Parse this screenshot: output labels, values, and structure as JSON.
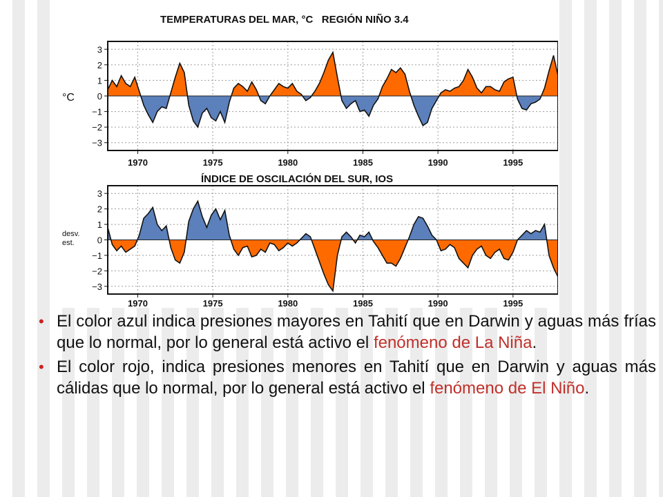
{
  "colors": {
    "positive_sst": "#ff6a00",
    "negative_sst": "#5b80bb",
    "positive_soi": "#5b80bb",
    "negative_soi": "#ff6a00",
    "highlight_text": "#c0302a",
    "bullet": "#cc2222"
  },
  "chart_data": [
    {
      "type": "area",
      "title": "TEMPERATURAS DEL MAR, °C   REGIÓN NIÑO 3.4",
      "ylabel": "°C",
      "xlim": [
        1968,
        1998
      ],
      "ylim": [
        -3.5,
        3.5
      ],
      "yticks": [
        "3",
        "2",
        "1",
        "0",
        "−1",
        "−2",
        "−3"
      ],
      "ytick_values": [
        3,
        2,
        1,
        0,
        -1,
        -2,
        -3
      ],
      "xticks": [
        "1970",
        "1975",
        "1980",
        "1985",
        "1990",
        "1995"
      ],
      "xtick_values": [
        1970,
        1975,
        1980,
        1985,
        1990,
        1995
      ],
      "grid": true,
      "fill_above_zero": "orange",
      "fill_below_zero": "blue",
      "x": [
        1968.0,
        1968.3,
        1968.6,
        1968.9,
        1969.2,
        1969.5,
        1969.8,
        1970.1,
        1970.4,
        1970.7,
        1971.0,
        1971.3,
        1971.6,
        1971.9,
        1972.2,
        1972.5,
        1972.8,
        1973.1,
        1973.4,
        1973.7,
        1974.0,
        1974.3,
        1974.6,
        1974.9,
        1975.2,
        1975.5,
        1975.8,
        1976.1,
        1976.4,
        1976.7,
        1977.0,
        1977.3,
        1977.6,
        1977.9,
        1978.2,
        1978.5,
        1978.8,
        1979.1,
        1979.4,
        1979.7,
        1980.0,
        1980.3,
        1980.6,
        1980.9,
        1981.2,
        1981.5,
        1981.8,
        1982.1,
        1982.4,
        1982.7,
        1983.0,
        1983.3,
        1983.6,
        1983.9,
        1984.2,
        1984.5,
        1984.8,
        1985.1,
        1985.4,
        1985.7,
        1986.0,
        1986.3,
        1986.6,
        1986.9,
        1987.2,
        1987.5,
        1987.8,
        1988.1,
        1988.4,
        1988.7,
        1989.0,
        1989.3,
        1989.6,
        1989.9,
        1990.2,
        1990.5,
        1990.8,
        1991.1,
        1991.4,
        1991.7,
        1992.0,
        1992.3,
        1992.6,
        1992.9,
        1993.2,
        1993.5,
        1993.8,
        1994.1,
        1994.4,
        1994.7,
        1995.0,
        1995.3,
        1995.6,
        1995.9,
        1996.2,
        1996.5,
        1996.8,
        1997.1,
        1997.4,
        1997.7,
        1998.0
      ],
      "values": [
        0.4,
        1.0,
        0.6,
        1.3,
        0.8,
        0.6,
        1.2,
        0.3,
        -0.6,
        -1.2,
        -1.7,
        -1.0,
        -0.7,
        -0.8,
        0.2,
        1.2,
        2.1,
        1.5,
        -0.6,
        -1.6,
        -2.0,
        -1.1,
        -0.8,
        -1.4,
        -1.6,
        -1.0,
        -1.7,
        -0.4,
        0.5,
        0.8,
        0.6,
        0.3,
        0.9,
        0.4,
        -0.3,
        -0.5,
        0.0,
        0.4,
        0.8,
        0.6,
        0.5,
        0.8,
        0.3,
        0.1,
        -0.3,
        -0.1,
        0.3,
        0.8,
        1.5,
        2.3,
        2.8,
        1.2,
        -0.3,
        -0.8,
        -0.5,
        -0.3,
        -1.0,
        -0.9,
        -1.3,
        -0.6,
        -0.2,
        0.6,
        1.1,
        1.7,
        1.5,
        1.8,
        1.4,
        0.3,
        -0.6,
        -1.3,
        -1.9,
        -1.7,
        -0.8,
        -0.3,
        0.2,
        0.4,
        0.3,
        0.5,
        0.6,
        1.0,
        1.7,
        1.2,
        0.5,
        0.2,
        0.6,
        0.6,
        0.4,
        0.3,
        0.9,
        1.1,
        1.2,
        -0.2,
        -0.8,
        -0.9,
        -0.5,
        -0.4,
        -0.2,
        0.5,
        1.6,
        2.6,
        1.3
      ]
    },
    {
      "type": "area",
      "title": "ÍNDICE DE OSCILACIÓN DEL SUR, IOS",
      "ylabel": "desv. est.",
      "xlim": [
        1968,
        1998
      ],
      "ylim": [
        -3.5,
        3.5
      ],
      "yticks": [
        "3",
        "2",
        "1",
        "0",
        "−1",
        "−2",
        "−3"
      ],
      "ytick_values": [
        3,
        2,
        1,
        0,
        -1,
        -2,
        -3
      ],
      "xticks": [
        "1970",
        "1975",
        "1980",
        "1985",
        "1990",
        "1995"
      ],
      "xtick_values": [
        1970,
        1975,
        1980,
        1985,
        1990,
        1995
      ],
      "grid": true,
      "fill_above_zero": "blue",
      "fill_below_zero": "orange",
      "x": [
        1968.0,
        1968.3,
        1968.6,
        1968.9,
        1969.2,
        1969.5,
        1969.8,
        1970.1,
        1970.4,
        1970.7,
        1971.0,
        1971.3,
        1971.6,
        1971.9,
        1972.2,
        1972.5,
        1972.8,
        1973.1,
        1973.4,
        1973.7,
        1974.0,
        1974.3,
        1974.6,
        1974.9,
        1975.2,
        1975.5,
        1975.8,
        1976.1,
        1976.4,
        1976.7,
        1977.0,
        1977.3,
        1977.6,
        1977.9,
        1978.2,
        1978.5,
        1978.8,
        1979.1,
        1979.4,
        1979.7,
        1980.0,
        1980.3,
        1980.6,
        1980.9,
        1981.2,
        1981.5,
        1981.8,
        1982.1,
        1982.4,
        1982.7,
        1983.0,
        1983.3,
        1983.6,
        1983.9,
        1984.2,
        1984.5,
        1984.8,
        1985.1,
        1985.4,
        1985.7,
        1986.0,
        1986.3,
        1986.6,
        1986.9,
        1987.2,
        1987.5,
        1987.8,
        1988.1,
        1988.4,
        1988.7,
        1989.0,
        1989.3,
        1989.6,
        1989.9,
        1990.2,
        1990.5,
        1990.8,
        1991.1,
        1991.4,
        1991.7,
        1992.0,
        1992.3,
        1992.6,
        1992.9,
        1993.2,
        1993.5,
        1993.8,
        1994.1,
        1994.4,
        1994.7,
        1995.0,
        1995.3,
        1995.6,
        1995.9,
        1996.2,
        1996.5,
        1996.8,
        1997.1,
        1997.4,
        1997.7,
        1998.0
      ],
      "values": [
        0.8,
        -0.3,
        -0.7,
        -0.4,
        -0.8,
        -0.6,
        -0.4,
        0.3,
        1.4,
        1.7,
        2.1,
        1.0,
        0.6,
        0.9,
        -0.5,
        -1.3,
        -1.5,
        -0.8,
        1.2,
        2.0,
        2.5,
        1.5,
        0.8,
        1.6,
        2.0,
        1.3,
        1.9,
        0.3,
        -0.6,
        -1.0,
        -0.5,
        -0.4,
        -1.1,
        -1.0,
        -0.6,
        -0.8,
        -0.2,
        -0.3,
        -0.7,
        -0.5,
        -0.2,
        -0.4,
        -0.2,
        0.1,
        0.4,
        0.2,
        -0.6,
        -1.4,
        -2.2,
        -2.9,
        -3.3,
        -1.0,
        0.2,
        0.5,
        0.2,
        -0.2,
        0.3,
        0.2,
        0.5,
        -0.1,
        -0.5,
        -1.0,
        -1.5,
        -1.5,
        -1.7,
        -1.2,
        -0.5,
        0.2,
        1.0,
        1.5,
        1.4,
        0.9,
        0.3,
        0.0,
        -0.7,
        -0.6,
        -0.3,
        -0.5,
        -1.2,
        -1.5,
        -1.8,
        -1.0,
        -0.6,
        -0.4,
        -1.0,
        -1.2,
        -0.8,
        -0.6,
        -1.2,
        -1.3,
        -0.8,
        0.0,
        0.3,
        0.6,
        0.4,
        0.6,
        0.5,
        1.0,
        -1.0,
        -1.8,
        -2.4
      ]
    }
  ],
  "bullets": [
    {
      "text": "El color azul indica presiones mayores en Tahití que en Darwin y aguas más frías que lo normal, por lo general está activo el ",
      "highlight": "fenómeno de La Niña",
      "suffix": "."
    },
    {
      "text": "El color rojo, indica presiones menores en Tahití que en Darwin y aguas más cálidas que lo normal, por lo general está activo el ",
      "highlight": "fenómeno de El Niño",
      "suffix": "."
    }
  ],
  "bullet_symbol": "•"
}
